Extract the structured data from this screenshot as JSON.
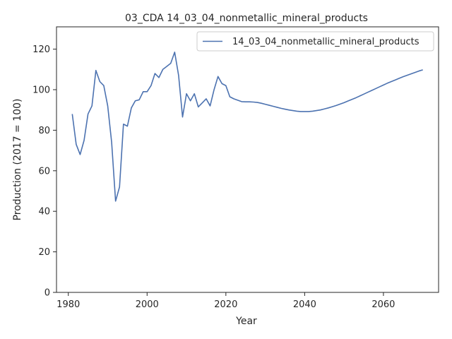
{
  "chart_data": {
    "type": "line",
    "title": "03_CDA 14_03_04_nonmetallic_mineral_products",
    "xlabel": "Year",
    "ylabel": "Production (2017 = 100)",
    "xlim": [
      1977,
      2074
    ],
    "ylim": [
      0,
      131
    ],
    "xticks": [
      1980,
      2000,
      2020,
      2040,
      2060
    ],
    "yticks": [
      0,
      20,
      40,
      60,
      80,
      100,
      120
    ],
    "grid": false,
    "legend_position": "top-right",
    "series": [
      {
        "name": "14_03_04_nonmetallic_mineral_products",
        "color": "#4c72b0",
        "x": [
          1981,
          1982,
          1983,
          1984,
          1985,
          1986,
          1987,
          1988,
          1989,
          1990,
          1991,
          1992,
          1993,
          1994,
          1995,
          1996,
          1997,
          1998,
          1999,
          2000,
          2001,
          2002,
          2003,
          2004,
          2005,
          2006,
          2007,
          2008,
          2009,
          2010,
          2011,
          2012,
          2013,
          2014,
          2015,
          2016,
          2017,
          2018,
          2019,
          2020,
          2021,
          2022,
          2023,
          2024,
          2025,
          2026,
          2027,
          2028,
          2029,
          2030,
          2031,
          2032,
          2033,
          2034,
          2035,
          2036,
          2037,
          2038,
          2039,
          2040,
          2041,
          2042,
          2043,
          2044,
          2045,
          2046,
          2047,
          2048,
          2049,
          2050,
          2051,
          2052,
          2053,
          2054,
          2055,
          2056,
          2057,
          2058,
          2059,
          2060,
          2061,
          2062,
          2063,
          2064,
          2065,
          2066,
          2067,
          2068,
          2069,
          2070
        ],
        "values": [
          88,
          73,
          68,
          75,
          88,
          92,
          109.5,
          104,
          102,
          92,
          74,
          45,
          52,
          83,
          82,
          91,
          94.5,
          95,
          99,
          99,
          102,
          108,
          106,
          110,
          111.5,
          113,
          118.5,
          107,
          86.5,
          98,
          94.5,
          98,
          91.5,
          93.5,
          95.5,
          92,
          100,
          106.5,
          103,
          102,
          96.5,
          95.5,
          94.8,
          94.1,
          94.0,
          94.0,
          93.9,
          93.7,
          93.3,
          92.8,
          92.3,
          91.8,
          91.3,
          90.8,
          90.4,
          90.0,
          89.7,
          89.4,
          89.2,
          89.2,
          89.2,
          89.4,
          89.7,
          90.0,
          90.5,
          91.0,
          91.6,
          92.2,
          92.9,
          93.6,
          94.4,
          95.2,
          96.0,
          96.9,
          97.8,
          98.7,
          99.6,
          100.5,
          101.4,
          102.3,
          103.2,
          104.0,
          104.8,
          105.6,
          106.4,
          107.1,
          107.8,
          108.5,
          109.2,
          109.8
        ]
      }
    ]
  }
}
